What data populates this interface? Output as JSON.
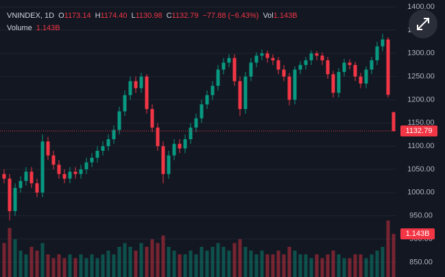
{
  "chart_data": {
    "type": "candlestick",
    "header": {
      "symbol": "VNINDEX, 1D",
      "open_label": "O",
      "open": "1173.14",
      "high_label": "H",
      "high": "1174.40",
      "low_label": "L",
      "low": "1130.98",
      "close_label": "C",
      "close": "1132.79",
      "change": "−77.88 (−6.43%)",
      "volume_label": "Vol",
      "volume": "1.143B",
      "volume_name": "Volume"
    },
    "up_color": "#089981",
    "down_color": "#f23645",
    "grid": true,
    "ylim": [
      818,
      1415
    ],
    "yticks": [
      {
        "value": 850,
        "label": "850.00"
      },
      {
        "value": 900,
        "label": "900.00"
      },
      {
        "value": 950,
        "label": "950.00"
      },
      {
        "value": 1000,
        "label": "1000.00"
      },
      {
        "value": 1050,
        "label": "1050.00"
      },
      {
        "value": 1100,
        "label": "1100.00"
      },
      {
        "value": 1150,
        "label": "1150.00"
      },
      {
        "value": 1200,
        "label": "1200.00"
      },
      {
        "value": 1250,
        "label": "1250.00"
      },
      {
        "value": 1300,
        "label": "1300.00"
      },
      {
        "value": 1350,
        "label": "1350.00"
      },
      {
        "value": 1400,
        "label": "1400.00"
      }
    ],
    "open": [
      1040,
      1030,
      960,
      1010,
      1025,
      1045,
      1020,
      1000,
      1110,
      1080,
      1060,
      1040,
      1030,
      1045,
      1040,
      1050,
      1065,
      1075,
      1090,
      1100,
      1115,
      1135,
      1175,
      1210,
      1240,
      1225,
      1250,
      1180,
      1140,
      1100,
      1040,
      1080,
      1105,
      1095,
      1115,
      1140,
      1160,
      1190,
      1210,
      1230,
      1265,
      1280,
      1290,
      1240,
      1180,
      1250,
      1280,
      1295,
      1300,
      1290,
      1285,
      1265,
      1250,
      1200,
      1265,
      1275,
      1285,
      1300,
      1295,
      1285,
      1255,
      1215,
      1260,
      1280,
      1275,
      1250,
      1235,
      1265,
      1285,
      1315,
      1330,
      1173.14
    ],
    "high": [
      1050,
      1040,
      1020,
      1035,
      1055,
      1055,
      1030,
      1125,
      1120,
      1090,
      1070,
      1050,
      1055,
      1055,
      1060,
      1075,
      1085,
      1100,
      1110,
      1125,
      1145,
      1185,
      1220,
      1250,
      1250,
      1258,
      1255,
      1190,
      1150,
      1110,
      1090,
      1115,
      1115,
      1125,
      1150,
      1170,
      1200,
      1220,
      1240,
      1275,
      1290,
      1298,
      1298,
      1250,
      1260,
      1290,
      1302,
      1308,
      1306,
      1298,
      1292,
      1275,
      1258,
      1272,
      1283,
      1292,
      1306,
      1305,
      1302,
      1292,
      1262,
      1268,
      1288,
      1287,
      1282,
      1258,
      1272,
      1292,
      1325,
      1342,
      1335,
      1174.4
    ],
    "low": [
      1020,
      940,
      950,
      1000,
      1015,
      1010,
      990,
      990,
      1070,
      1050,
      1030,
      1020,
      1020,
      1030,
      1030,
      1040,
      1055,
      1065,
      1080,
      1090,
      1105,
      1125,
      1165,
      1200,
      1215,
      1215,
      1170,
      1130,
      1090,
      1020,
      1030,
      1070,
      1085,
      1085,
      1105,
      1130,
      1150,
      1180,
      1200,
      1220,
      1255,
      1270,
      1230,
      1165,
      1170,
      1240,
      1270,
      1285,
      1280,
      1275,
      1255,
      1240,
      1188,
      1190,
      1255,
      1265,
      1275,
      1285,
      1275,
      1245,
      1205,
      1205,
      1250,
      1265,
      1240,
      1225,
      1225,
      1255,
      1275,
      1305,
      1205,
      1130.98
    ],
    "close": [
      1030,
      960,
      1010,
      1025,
      1045,
      1020,
      1000,
      1110,
      1080,
      1060,
      1040,
      1030,
      1045,
      1040,
      1050,
      1065,
      1075,
      1090,
      1100,
      1115,
      1135,
      1175,
      1210,
      1240,
      1225,
      1250,
      1180,
      1140,
      1100,
      1040,
      1080,
      1105,
      1095,
      1115,
      1140,
      1160,
      1190,
      1210,
      1230,
      1265,
      1280,
      1290,
      1240,
      1180,
      1250,
      1280,
      1295,
      1300,
      1290,
      1285,
      1265,
      1250,
      1200,
      1265,
      1275,
      1285,
      1300,
      1295,
      1285,
      1255,
      1215,
      1260,
      1280,
      1275,
      1250,
      1235,
      1265,
      1285,
      1315,
      1330,
      1210.67,
      1132.79
    ],
    "volume": [
      0.9,
      1.3,
      1.0,
      0.7,
      0.6,
      0.8,
      0.7,
      0.9,
      0.6,
      0.5,
      0.6,
      0.5,
      0.6,
      0.5,
      0.6,
      0.5,
      0.6,
      0.5,
      0.6,
      0.7,
      0.6,
      0.8,
      0.9,
      0.8,
      0.7,
      0.9,
      0.8,
      1.0,
      0.9,
      1.1,
      0.8,
      0.7,
      0.6,
      0.6,
      0.7,
      0.6,
      0.8,
      0.7,
      0.8,
      0.9,
      0.8,
      0.7,
      0.9,
      1.0,
      0.8,
      0.7,
      0.6,
      0.7,
      0.6,
      0.6,
      0.7,
      0.6,
      0.8,
      0.7,
      0.6,
      0.6,
      0.5,
      0.6,
      0.5,
      0.6,
      0.7,
      0.6,
      0.5,
      0.5,
      0.6,
      0.6,
      0.5,
      0.6,
      0.7,
      0.8,
      1.5,
      1.143
    ],
    "vlim": [
      0,
      2
    ]
  }
}
